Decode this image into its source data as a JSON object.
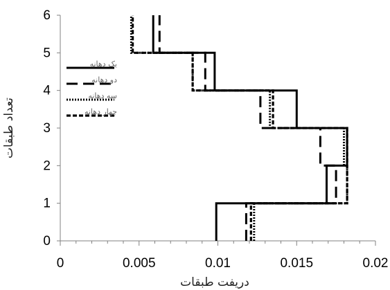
{
  "chart_data": {
    "type": "line",
    "title": "",
    "xlabel": "دریفت طبقات",
    "ylabel": "تعداد طبقات",
    "xlim": [
      0,
      0.02
    ],
    "ylim": [
      0,
      6
    ],
    "x_ticks": [
      "0",
      "0.005",
      "0.01",
      "0.015",
      "0.02"
    ],
    "x_tick_values": [
      0,
      0.005,
      0.01,
      0.015,
      0.02
    ],
    "y_ticks": [
      "0",
      "1",
      "2",
      "3",
      "4",
      "5",
      "6"
    ],
    "y_tick_values": [
      0,
      1,
      2,
      3,
      4,
      5,
      6
    ],
    "grid": false,
    "legend_position": "upper-left",
    "series": [
      {
        "name": "یک دهانه",
        "line_style": "solid",
        "color": "#000000",
        "points": [
          [
            0.0099,
            0
          ],
          [
            0.0099,
            1
          ],
          [
            0.0169,
            1
          ],
          [
            0.0169,
            2
          ],
          [
            0.0182,
            2
          ],
          [
            0.0182,
            3
          ],
          [
            0.015,
            3
          ],
          [
            0.015,
            4
          ],
          [
            0.0098,
            4
          ],
          [
            0.0098,
            5
          ],
          [
            0.0059,
            5
          ],
          [
            0.0059,
            6
          ]
        ]
      },
      {
        "name": "دو دهانه",
        "line_style": "long-dash",
        "color": "#000000",
        "points": [
          [
            0.0118,
            0
          ],
          [
            0.0118,
            1
          ],
          [
            0.0175,
            1
          ],
          [
            0.0175,
            2
          ],
          [
            0.0165,
            2
          ],
          [
            0.0165,
            3
          ],
          [
            0.0127,
            3
          ],
          [
            0.0127,
            4
          ],
          [
            0.0092,
            4
          ],
          [
            0.0092,
            5
          ],
          [
            0.0063,
            5
          ],
          [
            0.0063,
            6
          ]
        ]
      },
      {
        "name": "سه دهانه",
        "line_style": "dotted",
        "color": "#000000",
        "points": [
          [
            0.0123,
            0
          ],
          [
            0.0123,
            1
          ],
          [
            0.0182,
            1
          ],
          [
            0.0182,
            2
          ],
          [
            0.018,
            2
          ],
          [
            0.018,
            3
          ],
          [
            0.0133,
            3
          ],
          [
            0.0133,
            4
          ],
          [
            0.0084,
            4
          ],
          [
            0.0084,
            5
          ],
          [
            0.0045,
            5
          ],
          [
            0.0045,
            6
          ]
        ]
      },
      {
        "name": "چهار دهانه",
        "line_style": "short-dash",
        "color": "#000000",
        "points": [
          [
            0.0121,
            0
          ],
          [
            0.0121,
            1
          ],
          [
            0.0182,
            1
          ],
          [
            0.0182,
            2
          ],
          [
            0.0182,
            2
          ],
          [
            0.0182,
            3
          ],
          [
            0.0135,
            3
          ],
          [
            0.0135,
            4
          ],
          [
            0.0084,
            4
          ],
          [
            0.0084,
            5
          ],
          [
            0.0046,
            5
          ],
          [
            0.0046,
            6
          ]
        ]
      }
    ]
  }
}
